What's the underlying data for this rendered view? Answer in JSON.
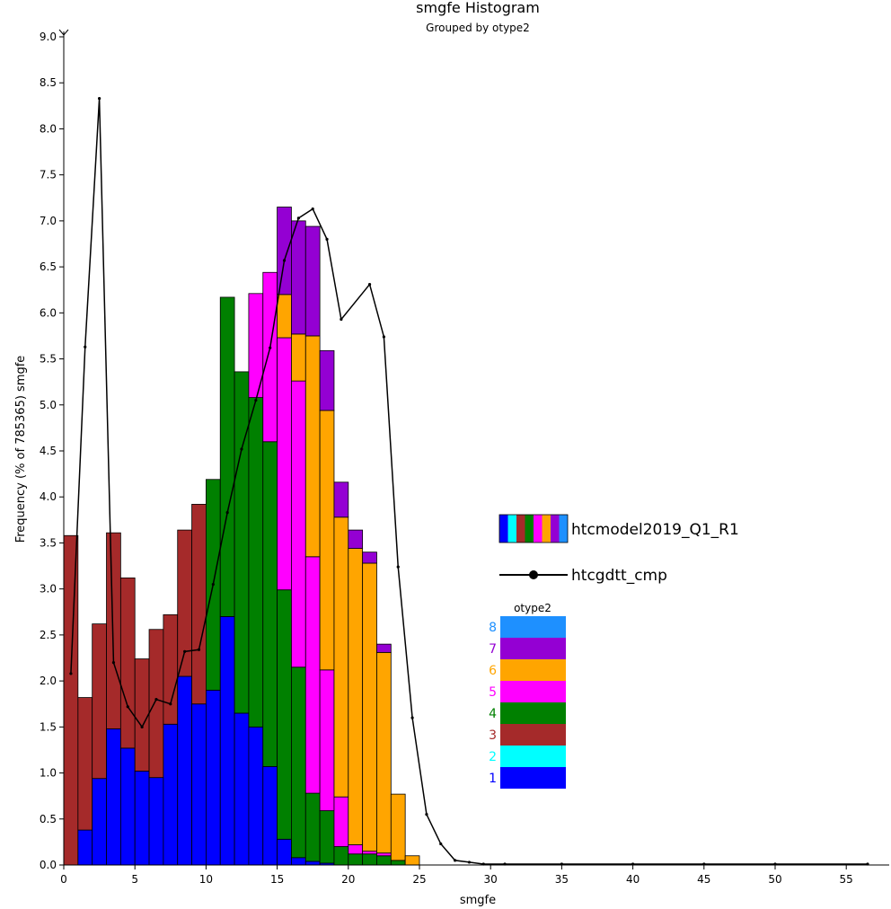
{
  "chart_data": {
    "type": "bar",
    "title": "smgfe Histogram",
    "subtitle": "Grouped by otype2",
    "xlabel": "smgfe",
    "ylabel": "Frequency (% of 785365) smgfe",
    "xlim": [
      0,
      58
    ],
    "ylim": [
      0,
      9.0
    ],
    "x_ticks": [
      0,
      5,
      10,
      15,
      20,
      25,
      30,
      35,
      40,
      45,
      50,
      55
    ],
    "x_tick_labels": [
      "0",
      "5",
      "10",
      "15",
      "20",
      "25",
      "30",
      "35",
      "40",
      "45",
      "50",
      "55"
    ],
    "y_ticks": [
      0,
      0.5,
      1,
      1.5,
      2,
      2.5,
      3,
      3.5,
      4,
      4.5,
      5,
      5.5,
      6,
      6.5,
      7,
      7.5,
      8,
      8.5,
      9
    ],
    "y_tick_labels": [
      "0.0",
      "0.5",
      "1.0",
      "1.5",
      "2.0",
      "2.5",
      "3.0",
      "3.5",
      "4.0",
      "4.5",
      "5.0",
      "5.5",
      "6.0",
      "6.5",
      "7.0",
      "7.5",
      "8.0",
      "8.5",
      "9.0"
    ],
    "bin_starts": [
      0,
      1,
      2,
      3,
      4,
      5,
      6,
      7,
      8,
      9,
      10,
      11,
      12,
      13,
      14,
      15,
      16,
      17,
      18,
      19,
      20,
      21,
      22,
      23,
      24,
      25
    ],
    "bin_width": 1,
    "grid": false,
    "legend_title": "otype2",
    "legend_placement": "right",
    "series": [
      {
        "name": "1",
        "color": "#0000ff",
        "values": [
          0,
          0.38,
          0.94,
          1.48,
          1.27,
          1.02,
          0.95,
          1.53,
          2.05,
          1.75,
          1.9,
          2.7,
          1.65,
          1.5,
          1.07,
          0.28,
          0.08,
          0.04,
          0.02,
          0,
          0,
          0,
          0,
          0,
          0,
          0
        ]
      },
      {
        "name": "2",
        "color": "#00ffff",
        "values": [
          0,
          0,
          0,
          0,
          0,
          0,
          0,
          0,
          0,
          0,
          0,
          0,
          0,
          0,
          0,
          0,
          0,
          0,
          0,
          0,
          0,
          0,
          0,
          0,
          0,
          0
        ]
      },
      {
        "name": "3",
        "color": "#a52a2a",
        "values": [
          3.58,
          1.44,
          1.68,
          2.13,
          1.85,
          1.22,
          1.61,
          1.19,
          1.59,
          2.17,
          0,
          0,
          0,
          0,
          0,
          0,
          0,
          0,
          0,
          0,
          0,
          0,
          0,
          0,
          0,
          0
        ]
      },
      {
        "name": "4",
        "color": "#008000",
        "values": [
          0,
          0,
          0,
          0,
          0,
          0,
          0,
          0,
          0,
          0,
          2.29,
          3.47,
          3.71,
          3.58,
          3.53,
          2.71,
          2.07,
          0.74,
          0.57,
          0.2,
          0.12,
          0.12,
          0.1,
          0.05,
          0,
          0
        ]
      },
      {
        "name": "5",
        "color": "#ff00ff",
        "values": [
          0,
          0,
          0,
          0,
          0,
          0,
          0,
          0,
          0,
          0,
          0,
          0,
          0,
          1.13,
          1.84,
          2.74,
          3.11,
          2.57,
          1.53,
          0.54,
          0.1,
          0.03,
          0.03,
          0,
          0,
          0
        ]
      },
      {
        "name": "6",
        "color": "#ffa500",
        "values": [
          0,
          0,
          0,
          0,
          0,
          0,
          0,
          0,
          0,
          0,
          0,
          0,
          0,
          0,
          0,
          0.47,
          0.51,
          2.4,
          2.82,
          3.04,
          3.22,
          3.13,
          2.18,
          0.72,
          0.1,
          0
        ]
      },
      {
        "name": "7",
        "color": "#9400d3",
        "values": [
          0,
          0,
          0,
          0,
          0,
          0,
          0,
          0,
          0,
          0,
          0,
          0,
          0,
          0,
          0,
          0.95,
          1.23,
          1.19,
          0.65,
          0.38,
          0.2,
          0.12,
          0.09,
          0,
          0,
          0
        ]
      },
      {
        "name": "8",
        "color": "#1e90ff",
        "values": [
          0,
          0,
          0,
          0,
          0,
          0,
          0,
          0,
          0,
          0,
          0,
          0,
          0,
          0,
          0,
          0,
          0,
          0,
          0,
          0,
          0,
          0,
          0,
          0,
          0,
          0
        ]
      }
    ],
    "overlay": {
      "name": "htcgdtt_cmp",
      "type": "line",
      "color": "#000000",
      "x": [
        0.5,
        1.5,
        2.5,
        3.5,
        4.5,
        5.5,
        6.5,
        7.5,
        8.5,
        9.5,
        10.5,
        11.5,
        12.5,
        13.5,
        14.5,
        15.5,
        16.5,
        17.5,
        18.5,
        19.5,
        21.5,
        22.5,
        23.5,
        24.5,
        25.5,
        26.5,
        27.5,
        28.5,
        29.5,
        31,
        35,
        40,
        45,
        50,
        56.5
      ],
      "y": [
        2.08,
        5.63,
        8.33,
        2.2,
        1.72,
        1.5,
        1.8,
        1.75,
        2.32,
        2.34,
        3.05,
        3.83,
        4.52,
        5.05,
        5.62,
        6.57,
        7.03,
        7.13,
        6.8,
        5.93,
        6.31,
        5.74,
        3.24,
        1.6,
        0.55,
        0.23,
        0.05,
        0.03,
        0.01,
        0.01,
        0.01,
        0.01,
        0.01,
        0.01,
        0.01
      ]
    },
    "legend_entries": [
      {
        "label": "htcmodel2019_Q1_R1",
        "kind": "swatch"
      },
      {
        "label": "htcgdtt_cmp",
        "kind": "line"
      }
    ]
  }
}
